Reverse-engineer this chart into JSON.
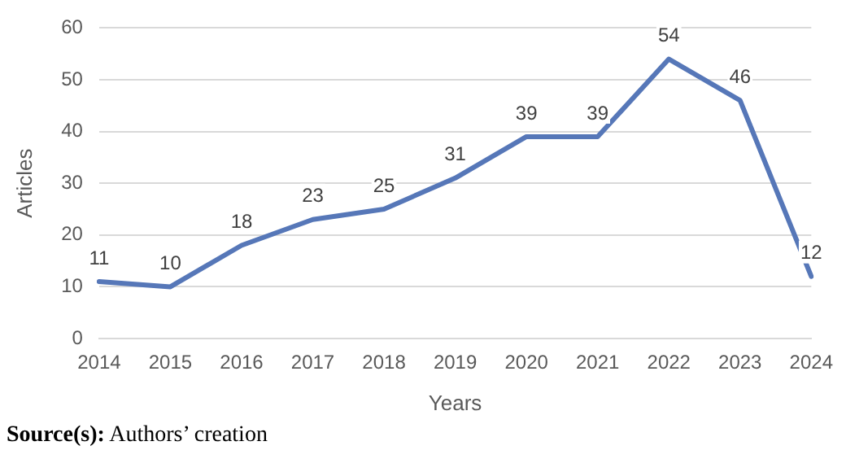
{
  "chart_data": {
    "type": "line",
    "xlabel": "Years",
    "ylabel": "Articles",
    "categories": [
      "2014",
      "2015",
      "2016",
      "2017",
      "2018",
      "2019",
      "2020",
      "2021",
      "2022",
      "2023",
      "2024"
    ],
    "series": [
      {
        "color": "#5677b8",
        "values": [
          11,
          10,
          18,
          23,
          25,
          31,
          39,
          39,
          54,
          46,
          12
        ]
      }
    ],
    "ylim": [
      0,
      60
    ],
    "yticks": [
      0,
      10,
      20,
      30,
      40,
      50,
      60
    ],
    "grid": "y",
    "data_labels": true,
    "marker": "none",
    "line_style": "solid",
    "annotations": [
      "Source(s): Authors’ creation"
    ]
  }
}
